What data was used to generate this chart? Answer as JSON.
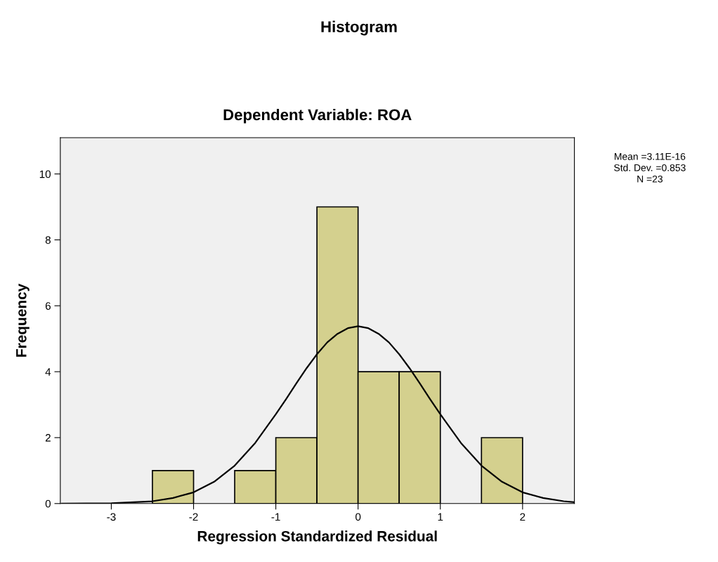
{
  "chart_data": {
    "type": "histogram",
    "title": "Histogram",
    "subtitle": "Dependent Variable: ROA",
    "xlabel": "Regression Standardized Residual",
    "ylabel": "Frequency",
    "bins": [
      -2.5,
      -2.0,
      -1.5,
      -1.0,
      -0.5,
      0.0,
      0.5,
      1.0,
      1.5,
      2.0
    ],
    "values": [
      1,
      0,
      1,
      2,
      9,
      4,
      4,
      0,
      2
    ],
    "color": "#d4d08e",
    "series": [
      {
        "type": "line",
        "color": "#000000",
        "x": [
          -3.6,
          -3.0,
          -2.5,
          -2.25,
          -2.0,
          -1.75,
          -1.5,
          -1.25,
          -1.0,
          -0.875,
          -0.75,
          -0.625,
          -0.5,
          -0.375,
          -0.25,
          -0.125,
          0.0,
          0.125,
          0.25,
          0.375,
          0.5,
          0.625,
          0.75,
          0.875,
          1.0,
          1.25,
          1.5,
          1.75,
          2.0,
          2.25,
          2.5,
          2.63
        ],
        "values": [
          0.0,
          0.01,
          0.07,
          0.17,
          0.34,
          0.66,
          1.15,
          1.84,
          2.71,
          3.17,
          3.65,
          4.11,
          4.53,
          4.89,
          5.15,
          5.32,
          5.38,
          5.32,
          5.15,
          4.89,
          4.53,
          4.11,
          3.65,
          3.17,
          2.71,
          1.84,
          1.15,
          0.66,
          0.34,
          0.17,
          0.07,
          0.04
        ]
      }
    ],
    "xlim": [
      -3.62,
      2.63
    ],
    "ylim": [
      0,
      11.1
    ],
    "xticks": [
      {
        "value": -3,
        "label": "-3"
      },
      {
        "value": -2,
        "label": "-2"
      },
      {
        "value": -1,
        "label": "-1"
      },
      0,
      1,
      2
    ],
    "yticks": [
      0,
      2,
      4,
      6,
      8,
      10
    ],
    "grid": false,
    "annotations": [
      "Mean =3.11E-16",
      "Std. Dev. =0.853",
      "N =23"
    ]
  }
}
